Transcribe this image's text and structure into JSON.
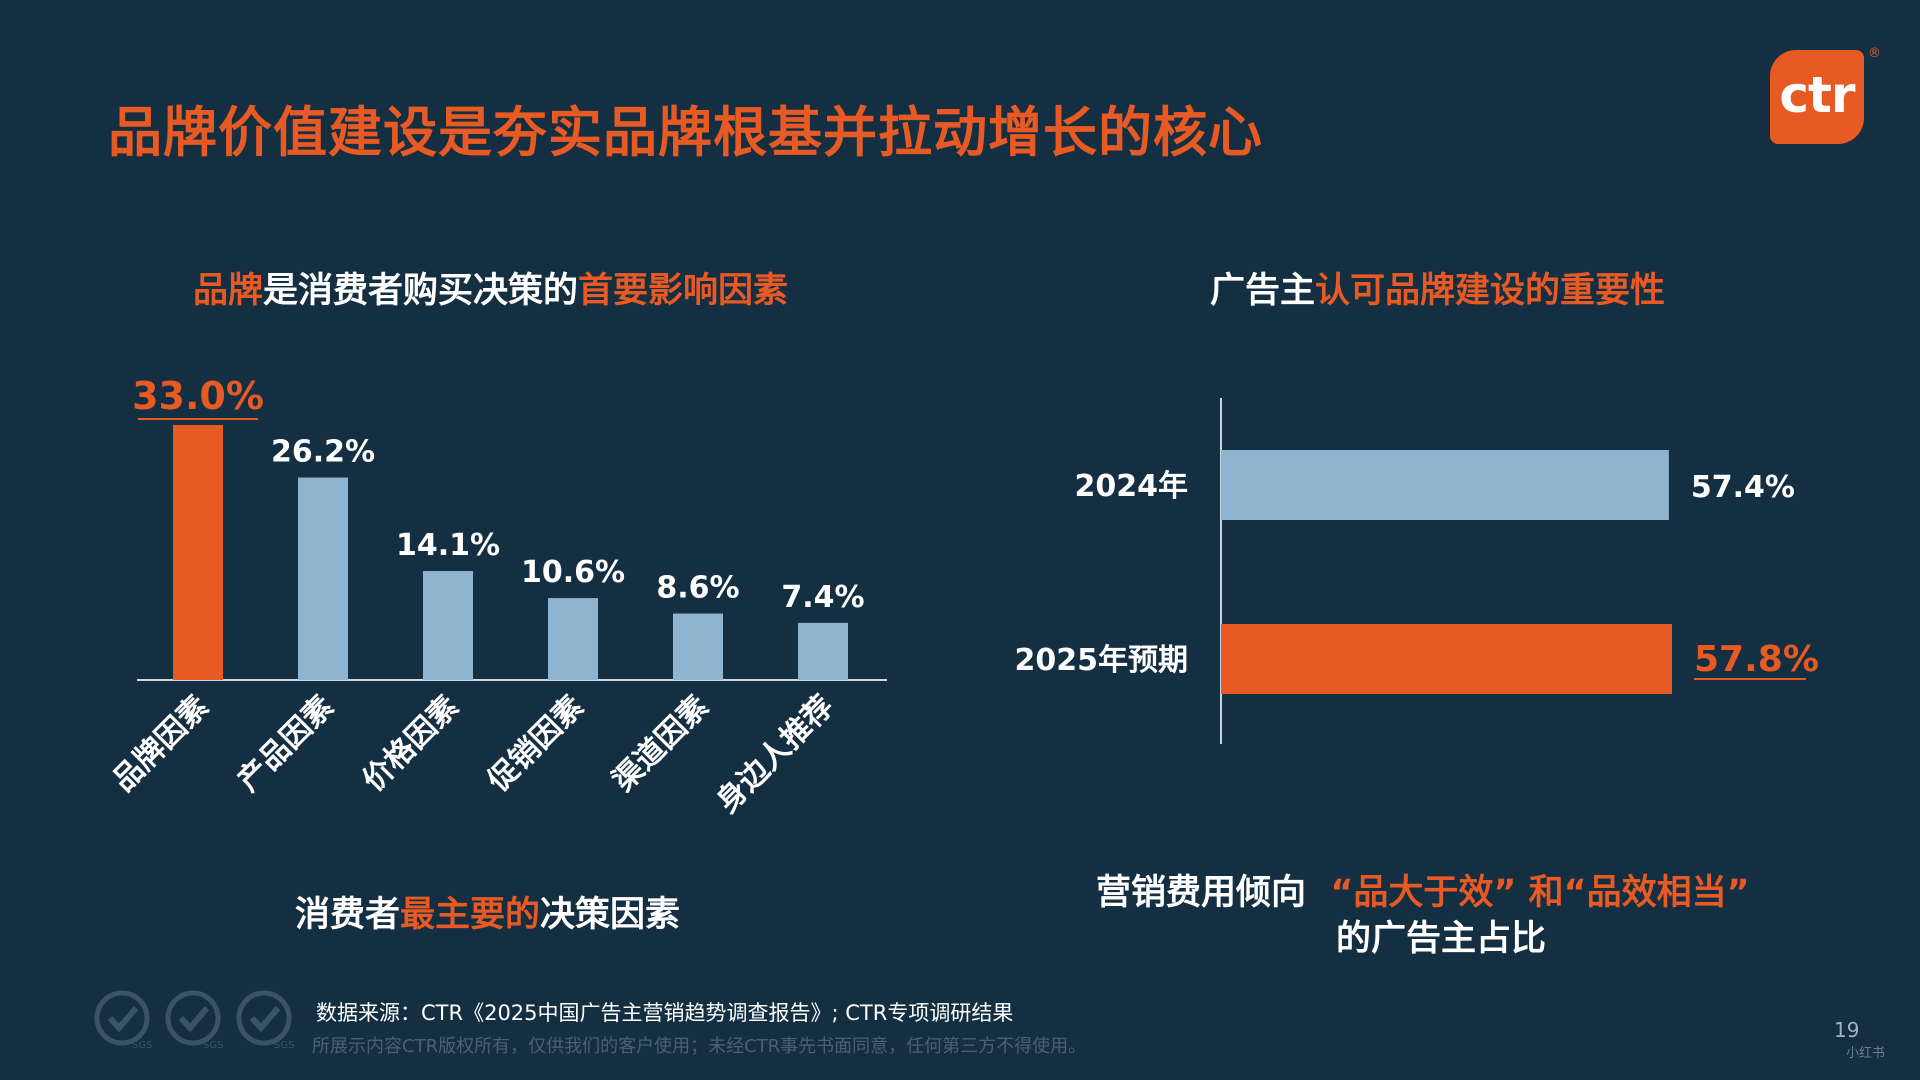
{
  "page": {
    "title": "品牌价值建设是夯实品牌根基并拉动增长的核心",
    "logo_text": "ctr",
    "logo_reg": "®",
    "page_number": "19",
    "watermark": "小红书",
    "source": "数据来源：CTR《2025中国广告主营销趋势调查报告》; CTR专项调研结果",
    "copyright": "所展示内容CTR版权所有，仅供我们的客户使用；未经CTR事先书面同意，任何第三方不得使用。",
    "sgs_label": "SGS"
  },
  "left_panel": {
    "subtitle_a": "品牌",
    "subtitle_b": "是消费者购买决策的",
    "subtitle_c": "首要影响因素",
    "caption_a": "消费者",
    "caption_b": "最主要的",
    "caption_c": "决策因素"
  },
  "right_panel": {
    "subtitle_a": "广告主",
    "subtitle_b": "认可品牌建设的重要性",
    "caption_line1_a": "营销费用倾向",
    "caption_line1_b": "“品大于效” 和“品效相当”",
    "caption_line2": "的广告主占比"
  },
  "colors": {
    "background": "#142e42",
    "accent": "#e85a24",
    "bar": "#8fb4cf",
    "axis": "#c9d6df"
  },
  "chart_data": [
    {
      "type": "bar",
      "orientation": "vertical",
      "categories": [
        "品牌因素",
        "产品因素",
        "价格因素",
        "促销因素",
        "渠道因素",
        "身边人推荐"
      ],
      "values": [
        33.0,
        26.2,
        14.1,
        10.6,
        8.6,
        7.4
      ],
      "labels": [
        "33.0%",
        "26.2%",
        "14.1%",
        "10.6%",
        "8.6%",
        "7.4%"
      ],
      "highlight_index": 0,
      "ylim": [
        0,
        33.0
      ]
    },
    {
      "type": "bar",
      "orientation": "horizontal",
      "categories": [
        "2024年",
        "2025年预期"
      ],
      "values": [
        57.4,
        57.8
      ],
      "labels": [
        "57.4%",
        "57.8%"
      ],
      "highlight_index": 1,
      "xlim": [
        0,
        57.8
      ]
    }
  ]
}
